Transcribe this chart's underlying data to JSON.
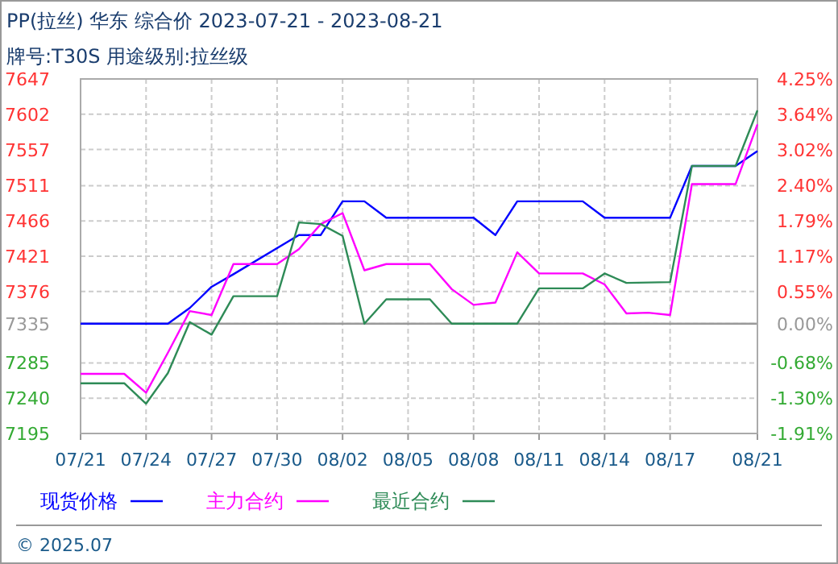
{
  "chart_data": {
    "type": "line",
    "title": "PP(拉丝) 华东 综合价 2023-07-21 - 2023-08-21",
    "subtitle": "牌号:T30S 用途级别:拉丝级",
    "series": [
      {
        "name": "现货价格",
        "color": "#0000ff",
        "x": [
          "2023-07-21",
          "2023-07-24",
          "2023-07-25",
          "2023-07-26",
          "2023-07-27",
          "2023-07-28",
          "2023-07-31",
          "2023-08-01",
          "2023-08-02",
          "2023-08-03",
          "2023-08-04",
          "2023-08-08",
          "2023-08-09",
          "2023-08-10",
          "2023-08-13",
          "2023-08-14",
          "2023-08-17",
          "2023-08-18",
          "2023-08-20",
          "2023-08-21"
        ],
        "values": [
          7335,
          7335,
          7335,
          7355,
          7382,
          7398,
          7448,
          7448,
          7491,
          7491,
          7470,
          7470,
          7448,
          7491,
          7491,
          7470,
          7470,
          7536,
          7536,
          7555
        ]
      },
      {
        "name": "主力合约",
        "color": "#ff00ff",
        "x": [
          "2023-07-21",
          "2023-07-23",
          "2023-07-24",
          "2023-07-25",
          "2023-07-26",
          "2023-07-27",
          "2023-07-28",
          "2023-07-30",
          "2023-07-31",
          "2023-08-01",
          "2023-08-02",
          "2023-08-03",
          "2023-08-04",
          "2023-08-06",
          "2023-08-07",
          "2023-08-08",
          "2023-08-09",
          "2023-08-10",
          "2023-08-11",
          "2023-08-13",
          "2023-08-14",
          "2023-08-15",
          "2023-08-16",
          "2023-08-17",
          "2023-08-18",
          "2023-08-20",
          "2023-08-21"
        ],
        "values": [
          7271,
          7271,
          7247,
          7298,
          7351,
          7346,
          7411,
          7411,
          7430,
          7462,
          7476,
          7403,
          7411,
          7411,
          7379,
          7359,
          7362,
          7426,
          7399,
          7399,
          7385,
          7348,
          7349,
          7346,
          7513,
          7513,
          7589
        ]
      },
      {
        "name": "最近合约",
        "color": "#2e8b57",
        "x": [
          "2023-07-21",
          "2023-07-23",
          "2023-07-24",
          "2023-07-25",
          "2023-07-26",
          "2023-07-27",
          "2023-07-28",
          "2023-07-30",
          "2023-07-31",
          "2023-08-01",
          "2023-08-02",
          "2023-08-03",
          "2023-08-04",
          "2023-08-06",
          "2023-08-07",
          "2023-08-10",
          "2023-08-11",
          "2023-08-13",
          "2023-08-14",
          "2023-08-15",
          "2023-08-17",
          "2023-08-18",
          "2023-08-20",
          "2023-08-21"
        ],
        "values": [
          7259,
          7259,
          7233,
          7272,
          7337,
          7321,
          7370,
          7370,
          7464,
          7462,
          7447,
          7335,
          7366,
          7366,
          7335,
          7335,
          7380,
          7380,
          7399,
          7387,
          7388,
          7536,
          7536,
          7607
        ]
      }
    ],
    "xlim": [
      "2023-07-21",
      "2023-08-21"
    ],
    "xticks": [
      {
        "value": "2023-07-21",
        "label": "07/21"
      },
      {
        "value": "2023-07-24",
        "label": "07/24"
      },
      {
        "value": "2023-07-27",
        "label": "07/27"
      },
      {
        "value": "2023-07-30",
        "label": "07/30"
      },
      {
        "value": "2023-08-02",
        "label": "08/02"
      },
      {
        "value": "2023-08-05",
        "label": "08/05"
      },
      {
        "value": "2023-08-08",
        "label": "08/08"
      },
      {
        "value": "2023-08-11",
        "label": "08/11"
      },
      {
        "value": "2023-08-14",
        "label": "08/14"
      },
      {
        "value": "2023-08-17",
        "label": "08/17"
      },
      {
        "value": "2023-08-21",
        "label": "08/21"
      }
    ],
    "ylim": [
      7195,
      7647
    ],
    "yticks": [
      7195,
      7240,
      7285,
      7335,
      7376,
      7421,
      7466,
      7511,
      7557,
      7602,
      7647
    ],
    "y2lim": [
      -1.91,
      4.25
    ],
    "y2ticks": [
      {
        "value": -1.91,
        "label": "-1.91%"
      },
      {
        "value": -1.3,
        "label": "-1.30%"
      },
      {
        "value": -0.68,
        "label": "-0.68%"
      },
      {
        "value": 0,
        "label": "0.00%"
      },
      {
        "value": 0.55,
        "label": "0.55%"
      },
      {
        "value": 1.17,
        "label": "1.17%"
      },
      {
        "value": 1.79,
        "label": "1.79%"
      },
      {
        "value": 2.4,
        "label": "2.40%"
      },
      {
        "value": 3.02,
        "label": "3.02%"
      },
      {
        "value": 3.64,
        "label": "3.64%"
      },
      {
        "value": 4.25,
        "label": "4.25%"
      }
    ],
    "ref_lines": [
      {
        "axis": "y",
        "value": 7335,
        "color": "#999999"
      }
    ],
    "grid": true,
    "legend": "bottom",
    "line_style": "solid",
    "annotations": [
      "© 2025.07"
    ]
  }
}
